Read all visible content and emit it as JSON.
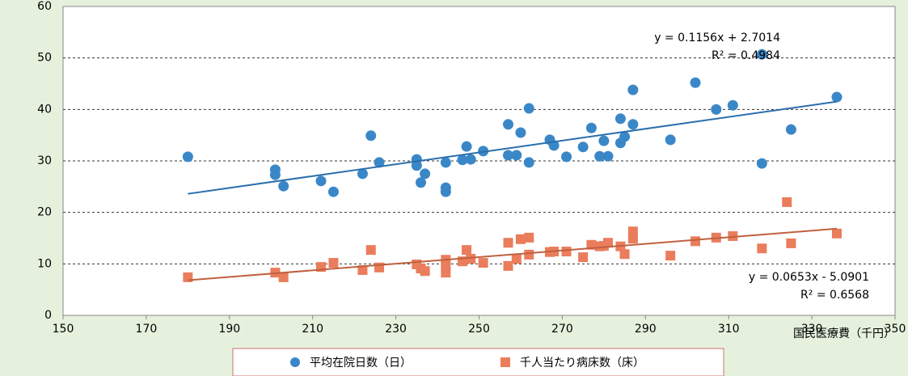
{
  "chart_data": {
    "type": "scatter",
    "x_label": "国民医療費（千円）",
    "xlim": [
      150,
      350
    ],
    "xticks": [
      150,
      170,
      190,
      210,
      230,
      250,
      270,
      290,
      310,
      330,
      350
    ],
    "ylim": [
      0,
      60
    ],
    "yticks": [
      0,
      10,
      20,
      30,
      40,
      50,
      60
    ],
    "grid": true,
    "trendline": true,
    "annotations": [
      [
        "y = 0.1156x + 2.7014",
        "R² = 0.4984"
      ],
      [
        "y = 0.0653x - 5.0901",
        "R² = 0.6568"
      ]
    ],
    "series": [
      {
        "name": "平均在院日数（日）",
        "color": "#3a87c8",
        "marker": "circle",
        "x": [
          180,
          201,
          201,
          203,
          212,
          215,
          222,
          224,
          226,
          235,
          235,
          236,
          237,
          242,
          242,
          242,
          246,
          247,
          248,
          251,
          257,
          257,
          259,
          260,
          262,
          262,
          267,
          268,
          271,
          275,
          277,
          279,
          280,
          281,
          284,
          284,
          285,
          287,
          287,
          296,
          302,
          307,
          311,
          318,
          318,
          325,
          336
        ],
        "values": [
          30.8,
          28.3,
          27.3,
          25.1,
          26.1,
          24.0,
          27.5,
          34.9,
          29.7,
          30.3,
          29.1,
          25.8,
          27.5,
          24.8,
          24.0,
          29.7,
          30.2,
          32.8,
          30.3,
          31.9,
          37.1,
          31.1,
          31.1,
          35.5,
          40.2,
          29.7,
          34.1,
          33.0,
          30.8,
          32.7,
          36.4,
          30.9,
          33.9,
          30.9,
          38.2,
          33.5,
          34.7,
          43.8,
          37.1,
          34.1,
          45.2,
          40.0,
          40.8,
          29.5,
          50.7,
          36.1,
          42.4
        ]
      },
      {
        "name": "千人当たり病床数（床）",
        "color": "#ea7d5c",
        "marker": "square",
        "x": [
          180,
          201,
          203,
          212,
          215,
          222,
          224,
          226,
          235,
          236,
          237,
          242,
          242,
          242,
          246,
          247,
          248,
          251,
          257,
          257,
          259,
          260,
          262,
          262,
          267,
          268,
          271,
          275,
          277,
          279,
          280,
          281,
          284,
          285,
          287,
          287,
          296,
          302,
          307,
          311,
          318,
          324,
          325,
          336
        ],
        "values": [
          7.4,
          8.3,
          7.4,
          9.4,
          10.2,
          8.8,
          12.7,
          9.3,
          9.9,
          9.1,
          8.6,
          10.8,
          8.3,
          9.7,
          10.5,
          12.7,
          11.0,
          10.2,
          14.1,
          9.6,
          11.0,
          14.8,
          15.1,
          11.8,
          12.3,
          12.4,
          12.4,
          11.3,
          13.7,
          13.4,
          13.5,
          14.1,
          13.4,
          11.9,
          16.3,
          14.9,
          11.6,
          14.4,
          15.1,
          15.4,
          13.0,
          22.0,
          14.0,
          15.9
        ]
      }
    ]
  }
}
